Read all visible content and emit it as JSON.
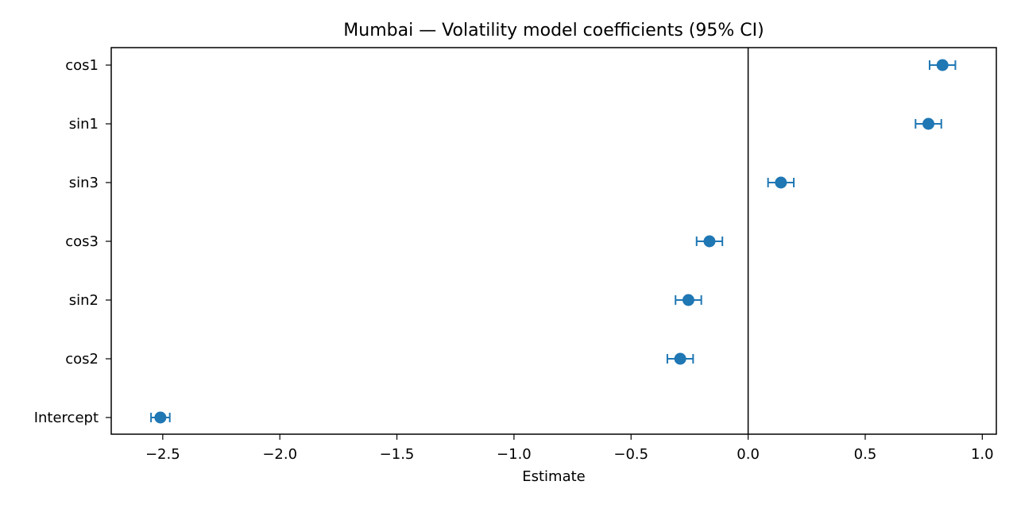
{
  "chart_data": {
    "type": "scatter",
    "title": "Mumbai — Volatility model coefficients (95% CI)",
    "xlabel": "Estimate",
    "ylabel": "",
    "xlim": [
      -2.72,
      1.06
    ],
    "xticks": [
      -2.5,
      -2.0,
      -1.5,
      -1.0,
      -0.5,
      0.0,
      0.5,
      1.0
    ],
    "xtick_labels": [
      "−2.5",
      "−2.0",
      "−1.5",
      "−1.0",
      "−0.5",
      "0.0",
      "0.5",
      "1.0"
    ],
    "reference_line_x": 0.0,
    "grid": false,
    "color": "#1f77b4",
    "categories": [
      "cos1",
      "sin1",
      "sin3",
      "cos3",
      "sin2",
      "cos2",
      "Intercept"
    ],
    "estimates": [
      0.83,
      0.77,
      0.14,
      -0.165,
      -0.255,
      -0.29,
      -2.51
    ],
    "ci_lower": [
      0.775,
      0.715,
      0.085,
      -0.22,
      -0.31,
      -0.345,
      -2.55
    ],
    "ci_upper": [
      0.885,
      0.825,
      0.195,
      -0.11,
      -0.2,
      -0.235,
      -2.47
    ]
  }
}
